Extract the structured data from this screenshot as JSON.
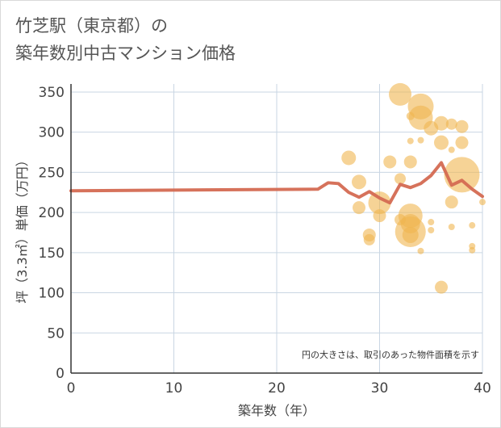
{
  "title": "竹芝駅（東京都）の\n築年数別中古マンション価格",
  "chart_data": {
    "type": "scatter",
    "xlabel": "築年数（年）",
    "ylabel": "坪（3.3㎡）単価（万円）",
    "xlim": [
      0,
      40
    ],
    "ylim": [
      0,
      360
    ],
    "xticks": [
      0,
      10,
      20,
      30,
      40
    ],
    "yticks": [
      0,
      50,
      100,
      150,
      200,
      250,
      300,
      350
    ],
    "grid": true,
    "annotation": "円の大きさは、取引のあった物件面積を示す",
    "colors": {
      "bubble": "#f0b650",
      "line": "#d46a52",
      "grid": "#c9d6e3",
      "axis": "#333333"
    },
    "line": {
      "x": [
        0,
        24,
        25,
        26,
        27,
        28,
        29,
        30,
        31,
        32,
        33,
        34,
        35,
        36,
        37,
        38,
        39,
        40
      ],
      "y": [
        227,
        229,
        237,
        236,
        225,
        219,
        226,
        218,
        212,
        235,
        231,
        236,
        246,
        262,
        234,
        240,
        229,
        220
      ]
    },
    "bubbles": [
      {
        "x": 27,
        "y": 268,
        "size": 9
      },
      {
        "x": 28,
        "y": 238,
        "size": 9
      },
      {
        "x": 28,
        "y": 206,
        "size": 8
      },
      {
        "x": 29,
        "y": 172,
        "size": 8
      },
      {
        "x": 29,
        "y": 166,
        "size": 7
      },
      {
        "x": 30,
        "y": 212,
        "size": 14
      },
      {
        "x": 30,
        "y": 196,
        "size": 8
      },
      {
        "x": 31,
        "y": 263,
        "size": 8
      },
      {
        "x": 32,
        "y": 347,
        "size": 14
      },
      {
        "x": 32,
        "y": 242,
        "size": 7
      },
      {
        "x": 32,
        "y": 191,
        "size": 7
      },
      {
        "x": 33,
        "y": 196,
        "size": 15
      },
      {
        "x": 33,
        "y": 186,
        "size": 12
      },
      {
        "x": 33,
        "y": 176,
        "size": 19
      },
      {
        "x": 33,
        "y": 172,
        "size": 10
      },
      {
        "x": 33,
        "y": 263,
        "size": 8
      },
      {
        "x": 33,
        "y": 289,
        "size": 4
      },
      {
        "x": 33,
        "y": 320,
        "size": 5
      },
      {
        "x": 34,
        "y": 332,
        "size": 16
      },
      {
        "x": 34,
        "y": 318,
        "size": 15
      },
      {
        "x": 34,
        "y": 290,
        "size": 4
      },
      {
        "x": 34,
        "y": 152,
        "size": 4
      },
      {
        "x": 35,
        "y": 305,
        "size": 9
      },
      {
        "x": 35,
        "y": 188,
        "size": 4
      },
      {
        "x": 35,
        "y": 178,
        "size": 4
      },
      {
        "x": 36,
        "y": 311,
        "size": 9
      },
      {
        "x": 36,
        "y": 287,
        "size": 9
      },
      {
        "x": 36,
        "y": 107,
        "size": 8
      },
      {
        "x": 37,
        "y": 310,
        "size": 7
      },
      {
        "x": 37,
        "y": 213,
        "size": 8
      },
      {
        "x": 37,
        "y": 182,
        "size": 4
      },
      {
        "x": 37,
        "y": 278,
        "size": 4
      },
      {
        "x": 38,
        "y": 307,
        "size": 8
      },
      {
        "x": 38,
        "y": 287,
        "size": 8
      },
      {
        "x": 38,
        "y": 247,
        "size": 22
      },
      {
        "x": 39,
        "y": 184,
        "size": 4
      },
      {
        "x": 39,
        "y": 158,
        "size": 4
      },
      {
        "x": 39,
        "y": 153,
        "size": 4
      },
      {
        "x": 40,
        "y": 213,
        "size": 4
      }
    ]
  }
}
